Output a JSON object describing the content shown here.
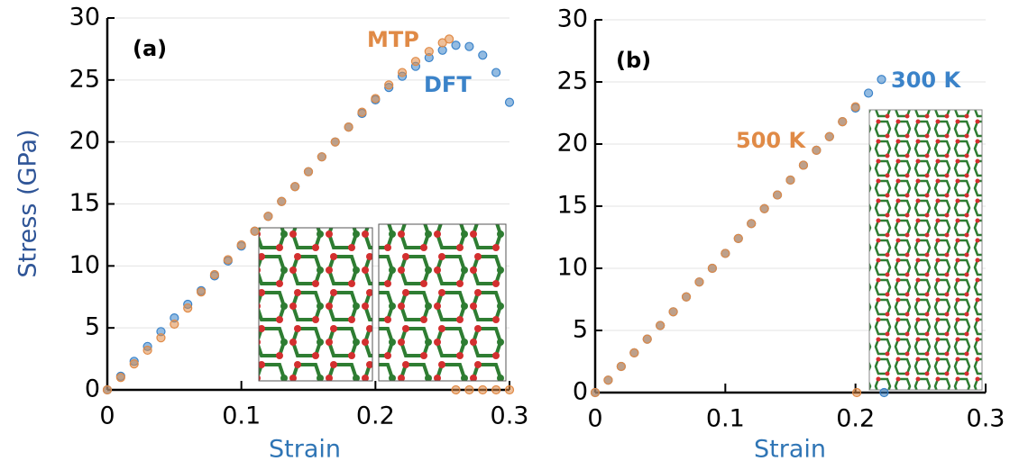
{
  "chart_data": [
    {
      "type": "scatter",
      "label": "(a)",
      "xlabel": "Strain",
      "ylabel": "Stress (GPa)",
      "xlim": [
        0,
        0.3
      ],
      "ylim": [
        0,
        30
      ],
      "xticks": [
        0,
        0.1,
        0.2,
        0.3
      ],
      "yticks": [
        0,
        5,
        10,
        15,
        20,
        25,
        30
      ],
      "grid": true,
      "series": [
        {
          "name": "DFT",
          "color": "#3b83c9",
          "x": [
            0,
            0.01,
            0.02,
            0.03,
            0.04,
            0.05,
            0.06,
            0.07,
            0.08,
            0.09,
            0.1,
            0.11,
            0.12,
            0.13,
            0.14,
            0.15,
            0.16,
            0.17,
            0.18,
            0.19,
            0.2,
            0.21,
            0.22,
            0.23,
            0.24,
            0.25,
            0.26,
            0.27,
            0.28,
            0.29,
            0.3
          ],
          "values": [
            0,
            1.1,
            2.3,
            3.5,
            4.7,
            5.8,
            6.9,
            8.0,
            9.2,
            10.4,
            11.6,
            12.8,
            14.0,
            15.2,
            16.4,
            17.6,
            18.8,
            20.0,
            21.2,
            22.3,
            23.4,
            24.4,
            25.3,
            26.1,
            26.8,
            27.4,
            27.8,
            27.7,
            27.0,
            25.6,
            23.2
          ]
        },
        {
          "name": "MTP",
          "color": "#e08a46",
          "x": [
            0,
            0.01,
            0.02,
            0.03,
            0.04,
            0.05,
            0.06,
            0.07,
            0.08,
            0.09,
            0.1,
            0.11,
            0.12,
            0.13,
            0.14,
            0.15,
            0.16,
            0.17,
            0.18,
            0.19,
            0.2,
            0.21,
            0.22,
            0.23,
            0.24,
            0.25,
            0.255,
            0.26,
            0.27,
            0.28,
            0.29,
            0.3
          ],
          "values": [
            0,
            1.0,
            2.1,
            3.2,
            4.2,
            5.3,
            6.6,
            7.9,
            9.3,
            10.5,
            11.7,
            12.8,
            14.0,
            15.2,
            16.4,
            17.6,
            18.8,
            20.0,
            21.2,
            22.4,
            23.5,
            24.6,
            25.6,
            26.5,
            27.3,
            28.0,
            28.3,
            0,
            0,
            0,
            0,
            0
          ]
        }
      ]
    },
    {
      "type": "scatter",
      "label": "(b)",
      "xlabel": "Strain",
      "xlim": [
        0,
        0.3
      ],
      "ylim": [
        0,
        30
      ],
      "xticks": [
        0,
        0.1,
        0.2,
        0.3
      ],
      "yticks": [
        0,
        5,
        10,
        15,
        20,
        25,
        30
      ],
      "grid": true,
      "series": [
        {
          "name": "300 K",
          "color": "#3b83c9",
          "x": [
            0,
            0.01,
            0.02,
            0.03,
            0.04,
            0.05,
            0.06,
            0.07,
            0.08,
            0.09,
            0.1,
            0.11,
            0.12,
            0.13,
            0.14,
            0.15,
            0.16,
            0.17,
            0.18,
            0.19,
            0.2,
            0.21,
            0.22,
            0.222
          ],
          "values": [
            0,
            1.0,
            2.1,
            3.2,
            4.3,
            5.4,
            6.5,
            7.7,
            8.9,
            10.0,
            11.2,
            12.4,
            13.6,
            14.8,
            15.9,
            17.1,
            18.3,
            19.5,
            20.6,
            21.8,
            22.9,
            24.1,
            25.2,
            0
          ]
        },
        {
          "name": "500 K",
          "color": "#e08a46",
          "x": [
            0,
            0.01,
            0.02,
            0.03,
            0.04,
            0.05,
            0.06,
            0.07,
            0.08,
            0.09,
            0.1,
            0.11,
            0.12,
            0.13,
            0.14,
            0.15,
            0.16,
            0.17,
            0.18,
            0.19,
            0.2,
            0.201
          ],
          "values": [
            0,
            1.0,
            2.1,
            3.2,
            4.3,
            5.4,
            6.5,
            7.7,
            8.9,
            10.0,
            11.2,
            12.4,
            13.6,
            14.8,
            15.9,
            17.1,
            18.3,
            19.5,
            20.6,
            21.8,
            23.0,
            0
          ]
        }
      ]
    }
  ]
}
